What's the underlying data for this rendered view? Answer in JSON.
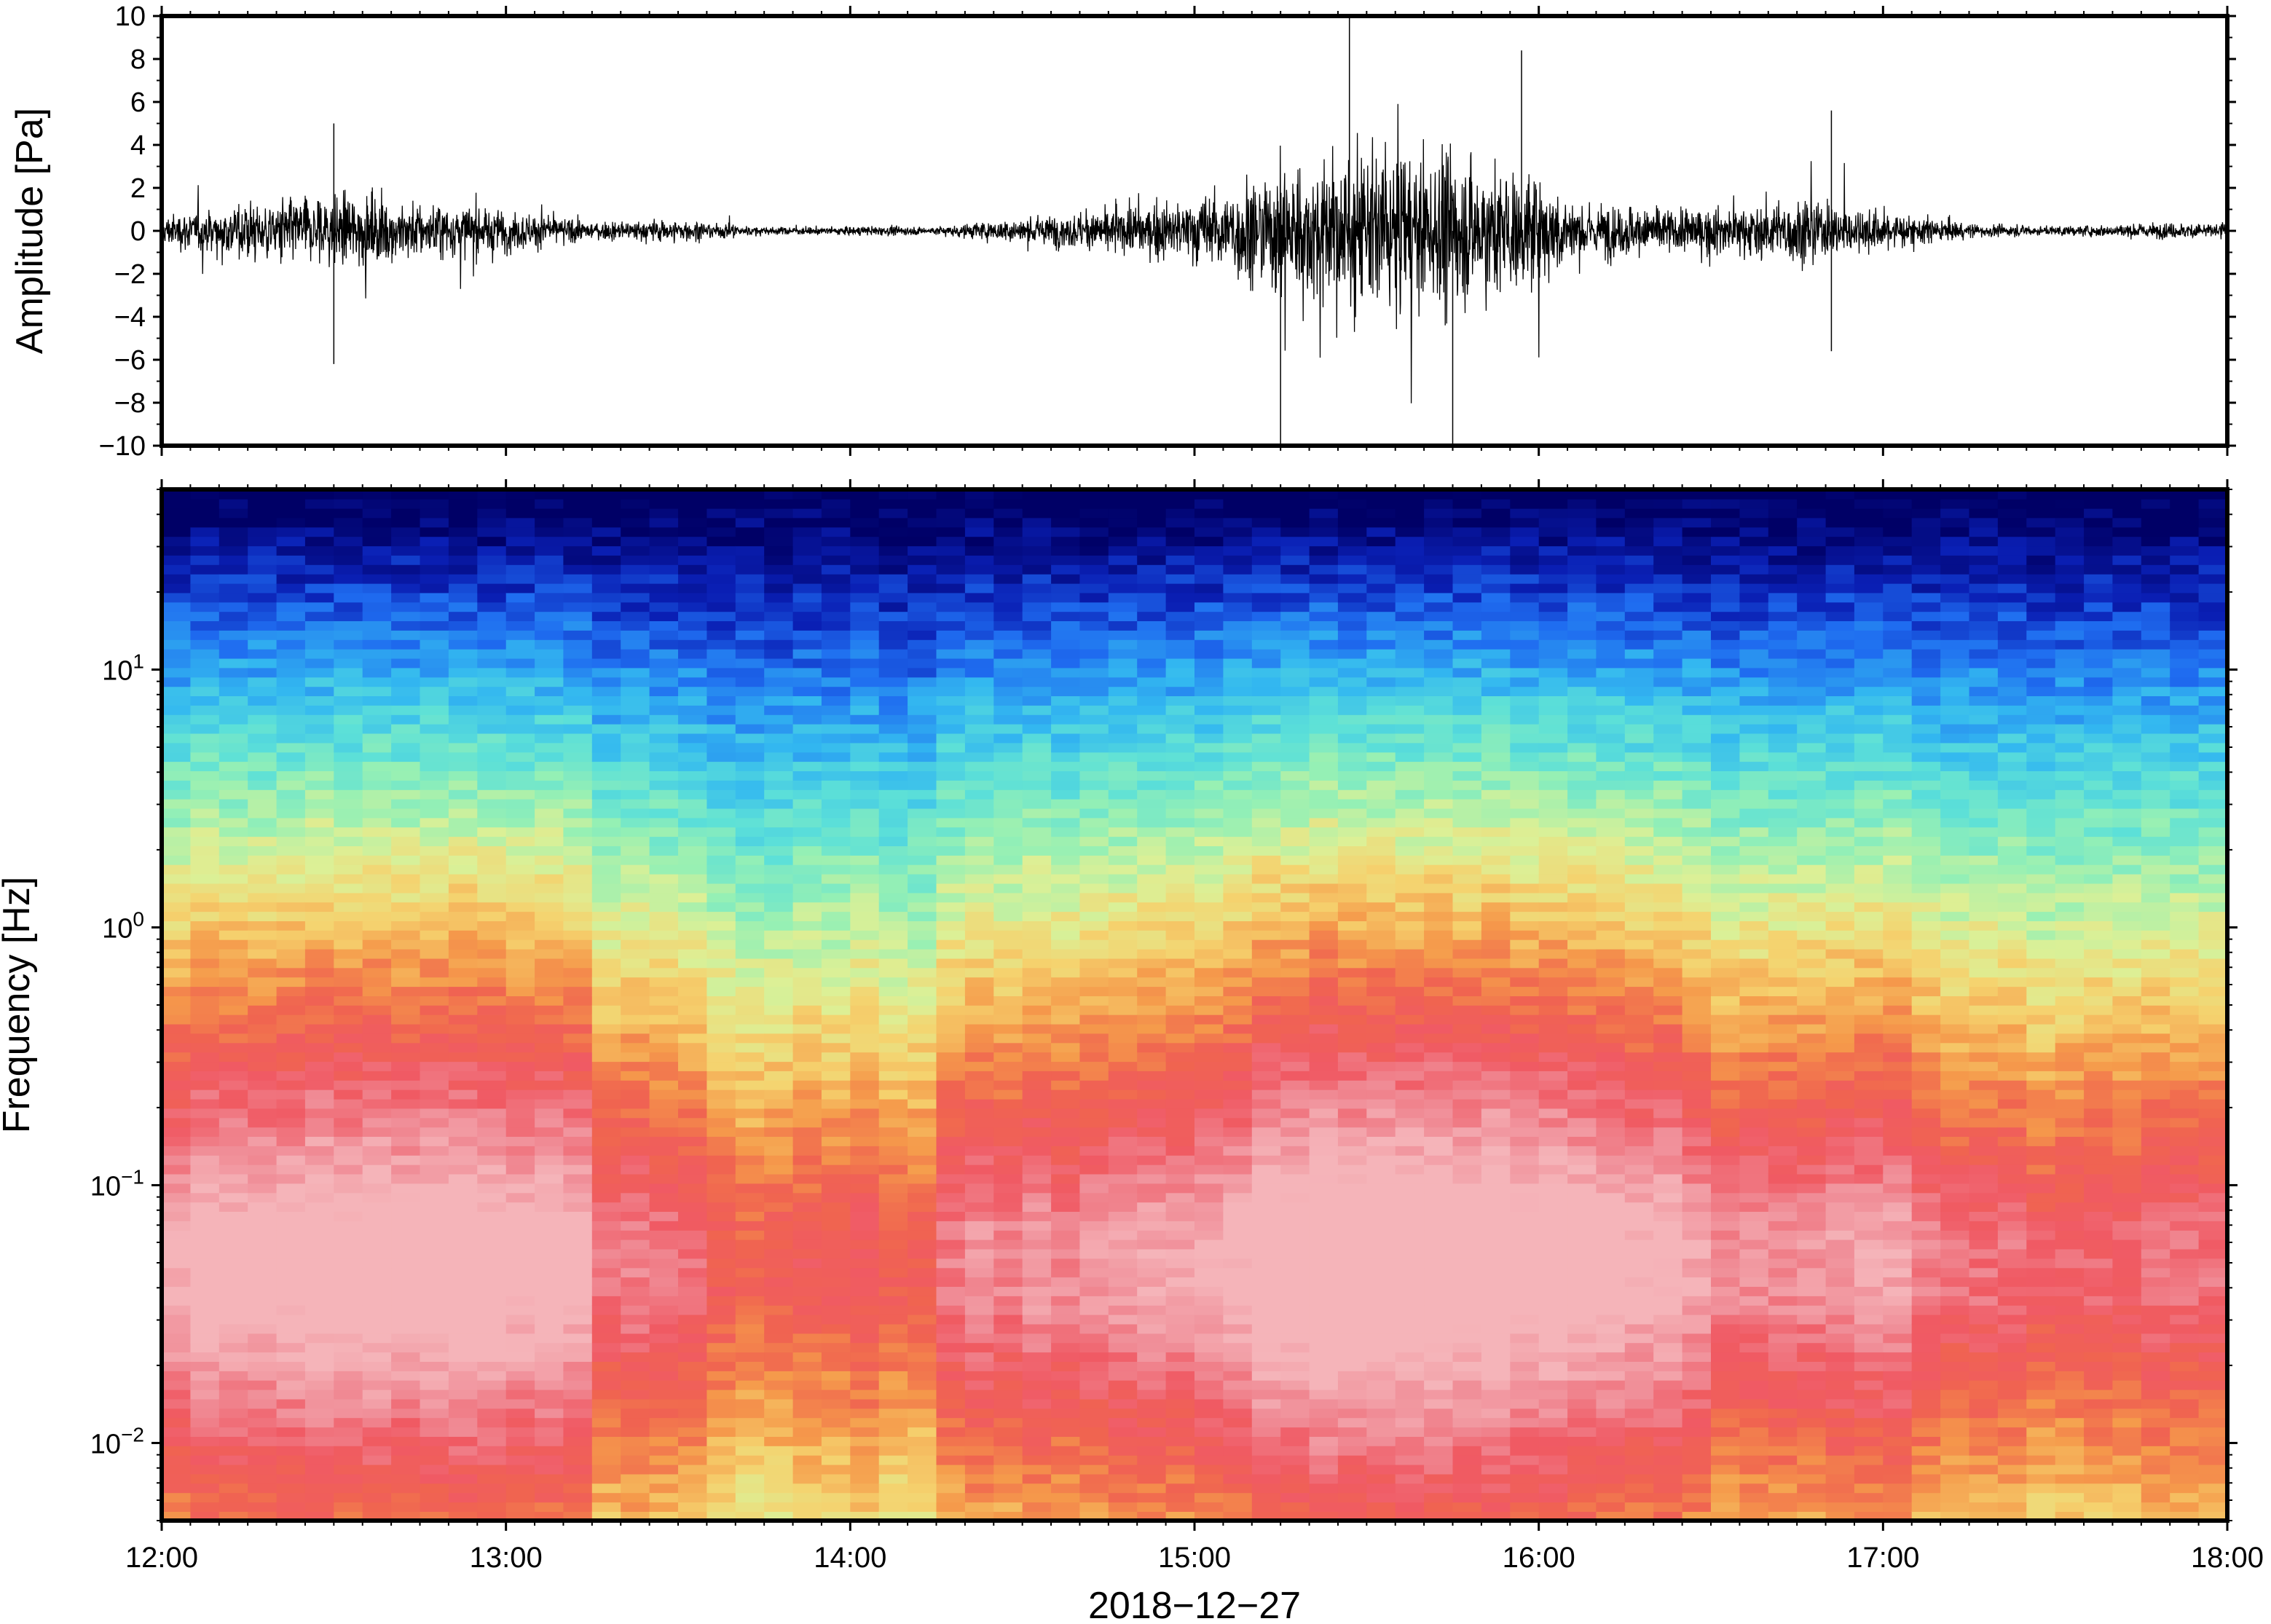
{
  "chart_data": [
    {
      "type": "line",
      "panel": "waveform",
      "ylabel": "Amplitude [Pa]",
      "xlabel": "",
      "ylim": [
        -10,
        10
      ],
      "yticks": [
        "10",
        "8",
        "6",
        "4",
        "2",
        "0",
        "−2",
        "−4",
        "−6",
        "−8",
        "−10"
      ],
      "ytick_values": [
        10,
        8,
        6,
        4,
        2,
        0,
        -2,
        -4,
        -6,
        -8,
        -10
      ],
      "xlim": [
        "12:00",
        "18:00"
      ],
      "line_color": "#000000",
      "envelope": {
        "hours": [
          12.0,
          12.25,
          12.5,
          12.75,
          13.0,
          13.25,
          13.5,
          13.75,
          14.0,
          14.25,
          14.5,
          14.75,
          15.0,
          15.25,
          15.5,
          15.75,
          16.0,
          16.1,
          16.25,
          16.5,
          16.75,
          17.0,
          17.25,
          17.5,
          17.75,
          18.0
        ],
        "amplitude": [
          1.0,
          2.0,
          2.5,
          2.0,
          1.5,
          0.6,
          0.8,
          0.25,
          0.3,
          0.3,
          0.9,
          1.4,
          2.2,
          4.6,
          5.4,
          5.2,
          3.8,
          2.0,
          1.8,
          1.5,
          2.2,
          1.4,
          0.5,
          0.3,
          0.5,
          0.6
        ]
      },
      "peaks": [
        {
          "hour": 12.5,
          "value": 5.0
        },
        {
          "hour": 12.5,
          "value": -6.2
        },
        {
          "hour": 15.45,
          "value": 10.0
        },
        {
          "hour": 15.25,
          "value": -10.0
        },
        {
          "hour": 15.75,
          "value": -10.0
        },
        {
          "hour": 15.95,
          "value": 8.4
        },
        {
          "hour": 16.85,
          "value": 5.6
        },
        {
          "hour": 16.85,
          "value": -5.6
        }
      ]
    },
    {
      "type": "heatmap",
      "panel": "spectrogram",
      "ylabel": "Frequency [Hz]",
      "xlabel": "2018−12−27",
      "yscale": "log",
      "ylim": [
        0.005,
        50
      ],
      "yticks": [
        {
          "base": "10",
          "exp": "−2",
          "value": 0.01
        },
        {
          "base": "10",
          "exp": "−1",
          "value": 0.1
        },
        {
          "base": "10",
          "exp": "0",
          "value": 1
        },
        {
          "base": "10",
          "exp": "1",
          "value": 10
        }
      ],
      "xticks": [
        "12:00",
        "13:00",
        "14:00",
        "15:00",
        "16:00",
        "17:00",
        "18:00"
      ],
      "xtick_hours": [
        12,
        13,
        14,
        15,
        16,
        17,
        18
      ],
      "colormap": [
        "#000066",
        "#0a1fb4",
        "#1f6cf0",
        "#33b8f0",
        "#5ce0d8",
        "#96f0b4",
        "#dcf096",
        "#f5d26e",
        "#f59a4b",
        "#f06450",
        "#f05a64",
        "#f08c96",
        "#f5b4b9"
      ],
      "energy_profile": {
        "hours": [
          12.0,
          12.3,
          12.6,
          12.9,
          13.2,
          13.25,
          13.5,
          13.65,
          13.8,
          14.0,
          14.2,
          14.3,
          14.5,
          14.75,
          15.0,
          15.25,
          15.5,
          15.75,
          16.0,
          16.25,
          16.45,
          16.55,
          16.75,
          17.0,
          17.25,
          17.5,
          17.75,
          18.0
        ],
        "level": [
          0.82,
          0.88,
          0.9,
          0.88,
          0.85,
          0.6,
          0.55,
          0.4,
          0.38,
          0.45,
          0.4,
          0.6,
          0.66,
          0.68,
          0.75,
          0.95,
          1.0,
          1.0,
          0.92,
          0.86,
          0.8,
          0.62,
          0.68,
          0.72,
          0.55,
          0.5,
          0.55,
          0.56
        ]
      }
    }
  ],
  "time_axis": {
    "labels": [
      "12:00",
      "13:00",
      "14:00",
      "15:00",
      "16:00",
      "17:00",
      "18:00"
    ],
    "date": "2018−12−27"
  }
}
